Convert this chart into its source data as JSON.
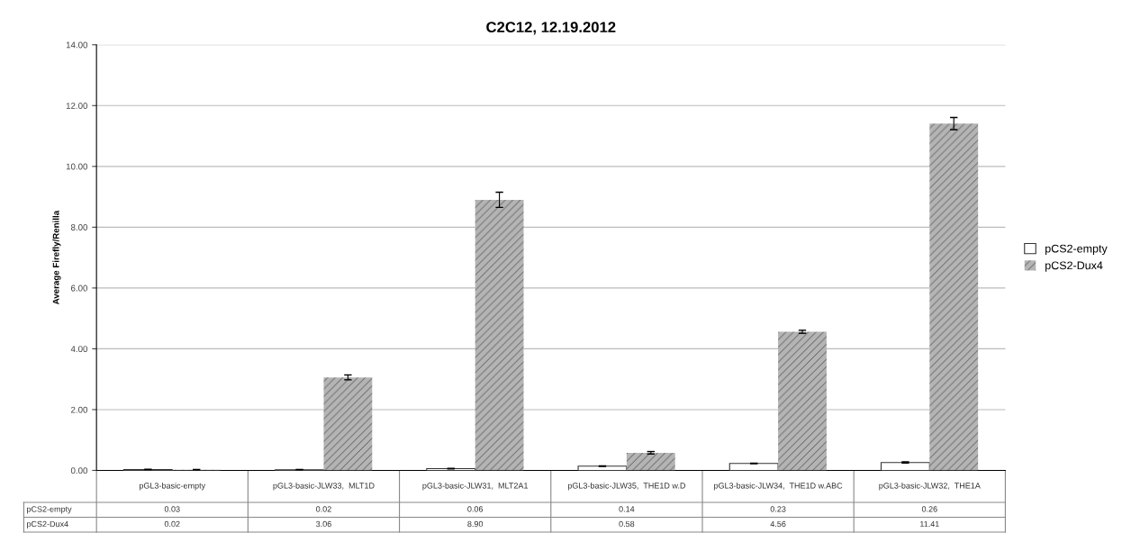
{
  "chart_data": {
    "type": "bar",
    "title": "C2C12, 12.19.2012",
    "ylabel": "Average Firefly/Renilla",
    "categories": [
      "pGL3-basic-empty",
      "pGL3-basic-JLW33,  MLT1D",
      "pGL3-basic-JLW31,  MLT2A1",
      "pGL3-basic-JLW35,  THE1D w.D",
      "pGL3-basic-JLW34,  THE1D w.ABC",
      "pGL3-basic-JLW32,  THE1A"
    ],
    "series": [
      {
        "name": "pCS2-empty",
        "color": "#ffffff",
        "values": [
          0.03,
          0.02,
          0.06,
          0.14,
          0.23,
          0.26
        ],
        "value_labels": [
          "0.03",
          "0.02",
          "0.06",
          "0.14",
          "0.23",
          "0.26"
        ],
        "errors": [
          0.01,
          0.01,
          0.01,
          0.01,
          0.01,
          0.02
        ]
      },
      {
        "name": "pCS2-Dux4",
        "color": "#b4b4b4",
        "values": [
          0.02,
          3.06,
          8.9,
          0.58,
          4.56,
          11.41
        ],
        "value_labels": [
          "0.02",
          "3.06",
          "8.90",
          "0.58",
          "4.56",
          "11.41"
        ],
        "errors": [
          0.01,
          0.08,
          0.25,
          0.04,
          0.05,
          0.2
        ]
      }
    ],
    "ylim": [
      0,
      14
    ],
    "yticks": [
      {
        "value": 0,
        "label": "0.00"
      },
      {
        "value": 2,
        "label": "2.00"
      },
      {
        "value": 4,
        "label": "4.00"
      },
      {
        "value": 6,
        "label": "6.00"
      },
      {
        "value": 8,
        "label": "8.00"
      },
      {
        "value": 10,
        "label": "10.00"
      },
      {
        "value": 12,
        "label": "12.00"
      },
      {
        "value": 14,
        "label": "14.00"
      }
    ],
    "grid": "y",
    "legend": "right"
  }
}
